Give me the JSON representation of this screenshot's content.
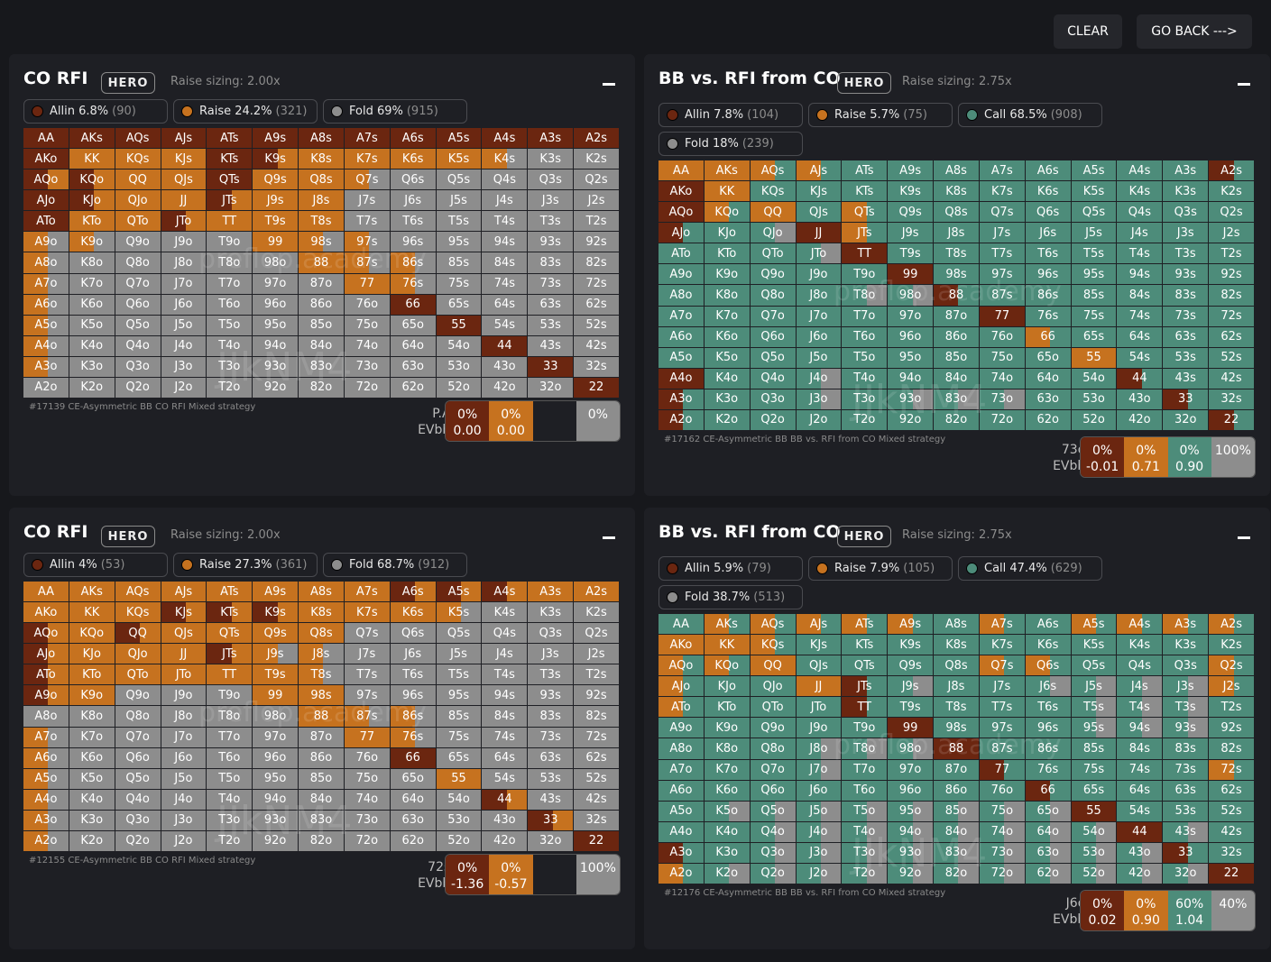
{
  "top": {
    "clear": "CLEAR",
    "back": "GO BACK --->"
  },
  "colors": {
    "allin": "#6b2610",
    "raise": "#c6721f",
    "call": "#4d8c7a",
    "fold": "#8d8d8d"
  },
  "panels": [
    {
      "title": "CO RFI",
      "hero": "HERO",
      "sizing": "Raise sizing: 2.00x",
      "chips": [
        {
          "color": "allin",
          "label": "Allin 6.8%",
          "count": "(90)"
        },
        {
          "color": "raise",
          "label": "Raise 24.2%",
          "count": "(321)"
        },
        {
          "color": "fold",
          "label": "Fold 69%",
          "count": "(915)"
        }
      ],
      "footer": "#17139 CE-Asymmetric BB CO RFI Mixed strategy",
      "hover": {
        "hand": "P.A:",
        "ev": "EVbb:",
        "cells": [
          {
            "color": "allin",
            "pct": "0%",
            "ev": "0.00"
          },
          {
            "color": "raise",
            "pct": "0%",
            "ev": "0.00"
          },
          {
            "color": "dark",
            "pct": "",
            "ev": ""
          },
          {
            "color": "fold",
            "pct": "0%",
            "ev": ""
          }
        ]
      },
      "rows": [
        [
          "A,A",
          "A,A",
          "A,A",
          "A,A",
          "A",
          "A",
          "A",
          "A",
          "A",
          "A",
          "A",
          "A",
          "A"
        ],
        [
          "A,A",
          "R",
          "R",
          "R",
          "A",
          "A,R",
          "R",
          "R",
          "R",
          "R",
          "R,F",
          "F",
          "F"
        ],
        [
          "A,R",
          "A,R",
          "R",
          "R",
          "A",
          "R",
          "R",
          "R,F",
          "F",
          "F",
          "F",
          "F",
          "F"
        ],
        [
          "A",
          "A,R",
          "R",
          "R",
          "A,R",
          "R",
          "R",
          "F",
          "F",
          "F",
          "F",
          "F",
          "F"
        ],
        [
          "A",
          "R",
          "R",
          "A,R",
          "R",
          "R",
          "R",
          "F",
          "F",
          "F",
          "F",
          "F",
          "F"
        ],
        [
          "R,F",
          "R,F",
          "F",
          "F",
          "F",
          "R",
          "R,F",
          "R,F",
          "F",
          "F",
          "F",
          "F",
          "F"
        ],
        [
          "R,F",
          "F",
          "F",
          "F",
          "F",
          "F",
          "R",
          "R,F",
          "R,F",
          "F",
          "F",
          "F",
          "F"
        ],
        [
          "R,F",
          "F",
          "F",
          "F",
          "F",
          "F",
          "F",
          "R",
          "R,F",
          "F",
          "F",
          "F",
          "F"
        ],
        [
          "R,F",
          "F",
          "F",
          "F",
          "F",
          "F",
          "F",
          "F",
          "A",
          "F",
          "F",
          "F",
          "F"
        ],
        [
          "R,F",
          "F",
          "F",
          "F",
          "F",
          "F",
          "F",
          "F",
          "F",
          "A",
          "F",
          "F",
          "F"
        ],
        [
          "R,F",
          "F",
          "F",
          "F",
          "F",
          "F",
          "F",
          "F",
          "F",
          "F",
          "A",
          "F",
          "F"
        ],
        [
          "R,F",
          "F",
          "F",
          "F",
          "F",
          "F",
          "F",
          "F",
          "F",
          "F",
          "F",
          "A",
          "F"
        ],
        [
          "F",
          "F",
          "F",
          "F",
          "F",
          "F",
          "F",
          "F",
          "F",
          "F",
          "F",
          "F",
          "A"
        ]
      ]
    },
    {
      "title": "BB vs. RFI from CO",
      "hero": "HERO",
      "sizing": "Raise sizing: 2.75x",
      "chips": [
        {
          "color": "allin",
          "label": "Allin 7.8%",
          "count": "(104)"
        },
        {
          "color": "raise",
          "label": "Raise 5.7%",
          "count": "(75)"
        },
        {
          "color": "call",
          "label": "Call 68.5%",
          "count": "(908)"
        },
        {
          "color": "fold",
          "label": "Fold 18%",
          "count": "(239)"
        }
      ],
      "footer": "#17162 CE-Asymmetric BB BB vs. RFI from CO Mixed strategy",
      "hover": {
        "hand": "73o:",
        "ev": "EVbb:",
        "cells": [
          {
            "color": "allin",
            "pct": "0%",
            "ev": "-0.01"
          },
          {
            "color": "raise",
            "pct": "0%",
            "ev": "0.71"
          },
          {
            "color": "call",
            "pct": "0%",
            "ev": "0.90"
          },
          {
            "color": "fold",
            "pct": "100%",
            "ev": ""
          }
        ]
      },
      "rows": [
        [
          "R",
          "R",
          "R,C",
          "R,C",
          "C",
          "C",
          "C",
          "C",
          "C",
          "C",
          "C",
          "C",
          "A,C"
        ],
        [
          "A",
          "R",
          "C",
          "C",
          "C",
          "C",
          "C",
          "C",
          "C",
          "C",
          "C",
          "C",
          "C"
        ],
        [
          "A",
          "R,C",
          "R",
          "C",
          "R,C",
          "C",
          "C",
          "C",
          "C",
          "C",
          "C",
          "C",
          "C"
        ],
        [
          "A,C",
          "C",
          "C,F",
          "A",
          "R,C",
          "C",
          "C",
          "C",
          "C",
          "C",
          "C",
          "C",
          "C"
        ],
        [
          "C",
          "C",
          "C",
          "C,F",
          "A",
          "C",
          "C",
          "C",
          "C",
          "C",
          "C",
          "C",
          "C"
        ],
        [
          "C",
          "C",
          "C",
          "C",
          "C",
          "A",
          "C",
          "C",
          "C",
          "C",
          "C",
          "C",
          "C"
        ],
        [
          "C",
          "C",
          "C",
          "C",
          "C,F",
          "C,F",
          "A,C",
          "C",
          "C",
          "C",
          "C",
          "C",
          "C"
        ],
        [
          "C",
          "C",
          "C",
          "C",
          "C",
          "C",
          "C",
          "A",
          "C",
          "C",
          "C",
          "C",
          "C"
        ],
        [
          "C",
          "C",
          "C",
          "C",
          "C",
          "C",
          "C",
          "C",
          "R,C",
          "C",
          "C",
          "C",
          "C"
        ],
        [
          "C",
          "C",
          "C",
          "C",
          "C",
          "C",
          "C",
          "C",
          "C",
          "R",
          "C",
          "C",
          "C"
        ],
        [
          "A",
          "C",
          "C",
          "C,F",
          "C",
          "C",
          "C",
          "C",
          "C",
          "C",
          "A,C",
          "C",
          "C"
        ],
        [
          "A,C",
          "C",
          "C",
          "C,F",
          "C",
          "C,F",
          "C,F",
          "C,F",
          "C",
          "C",
          "C",
          "A,C",
          "C"
        ],
        [
          "A,C",
          "C",
          "C",
          "C",
          "C",
          "C",
          "C",
          "C",
          "C",
          "C",
          "C",
          "C",
          "A,C"
        ]
      ]
    },
    {
      "title": "CO RFI",
      "hero": "HERO",
      "sizing": "Raise sizing: 2.00x",
      "chips": [
        {
          "color": "allin",
          "label": "Allin 4%",
          "count": "(53)"
        },
        {
          "color": "raise",
          "label": "Raise 27.3%",
          "count": "(361)"
        },
        {
          "color": "fold",
          "label": "Fold 68.7%",
          "count": "(912)"
        }
      ],
      "footer": "#12155 CE-Asymmetric BB CO RFI Mixed strategy",
      "hover": {
        "hand": "72s:",
        "ev": "EVbb:",
        "cells": [
          {
            "color": "allin",
            "pct": "0%",
            "ev": "-1.36"
          },
          {
            "color": "raise",
            "pct": "0%",
            "ev": "-0.57"
          },
          {
            "color": "dark",
            "pct": "",
            "ev": ""
          },
          {
            "color": "fold",
            "pct": "100%",
            "ev": ""
          }
        ]
      },
      "rows": [
        [
          "R",
          "R",
          "R",
          "R",
          "R",
          "R",
          "R",
          "R",
          "A,R",
          "A,R",
          "A,R",
          "R",
          "R"
        ],
        [
          "R",
          "R",
          "R",
          "A,R",
          "A,R",
          "A,R",
          "R",
          "R",
          "R",
          "R,F",
          "F",
          "F",
          "F"
        ],
        [
          "A,R",
          "R",
          "A,R",
          "R",
          "R",
          "R",
          "R",
          "F",
          "F",
          "F",
          "F",
          "F",
          "F"
        ],
        [
          "A,R",
          "R",
          "R",
          "R",
          "A,R",
          "R,F",
          "R,F",
          "F",
          "F",
          "F",
          "F",
          "F",
          "F"
        ],
        [
          "A,R",
          "R",
          "R",
          "R",
          "R",
          "R",
          "R,F",
          "F",
          "F",
          "F",
          "F",
          "F",
          "F"
        ],
        [
          "A,R",
          "R",
          "F",
          "F",
          "F",
          "R",
          "R",
          "F",
          "F",
          "F",
          "F",
          "F",
          "F"
        ],
        [
          "F",
          "F",
          "F",
          "F",
          "F",
          "F",
          "R",
          "R,F",
          "R,F",
          "F",
          "F",
          "F",
          "F"
        ],
        [
          "R,F",
          "F",
          "F",
          "F",
          "F",
          "F",
          "F",
          "R",
          "R,F",
          "F",
          "F",
          "F",
          "F"
        ],
        [
          "R,F",
          "F",
          "F",
          "F",
          "F",
          "F",
          "F",
          "F",
          "A",
          "F",
          "F",
          "F",
          "F"
        ],
        [
          "R,F",
          "F",
          "F",
          "F",
          "F",
          "F",
          "F",
          "F",
          "F",
          "R",
          "F",
          "F",
          "F"
        ],
        [
          "R,F",
          "F",
          "F",
          "F",
          "F",
          "F",
          "F",
          "F",
          "F",
          "F",
          "A,R",
          "F",
          "F"
        ],
        [
          "R,F",
          "F",
          "F",
          "F",
          "F",
          "F",
          "F",
          "F",
          "F",
          "F",
          "F",
          "A,R",
          "F"
        ],
        [
          "R,F",
          "F",
          "F",
          "F",
          "F",
          "F",
          "F",
          "F",
          "F",
          "F",
          "F",
          "F",
          "A"
        ]
      ]
    },
    {
      "title": "BB vs. RFI from CO",
      "hero": "HERO",
      "sizing": "Raise sizing: 2.75x",
      "chips": [
        {
          "color": "allin",
          "label": "Allin 5.9%",
          "count": "(79)"
        },
        {
          "color": "raise",
          "label": "Raise 7.9%",
          "count": "(105)"
        },
        {
          "color": "call",
          "label": "Call 47.4%",
          "count": "(629)"
        },
        {
          "color": "fold",
          "label": "Fold 38.7%",
          "count": "(513)"
        }
      ],
      "footer": "#12176 CE-Asymmetric BB BB vs. RFI from CO Mixed strategy",
      "hover": {
        "hand": "J6o:",
        "ev": "EVbb:",
        "cells": [
          {
            "color": "allin",
            "pct": "0%",
            "ev": "0.02"
          },
          {
            "color": "raise",
            "pct": "0%",
            "ev": "0.90"
          },
          {
            "color": "call",
            "pct": "60%",
            "ev": "1.04"
          },
          {
            "color": "fold",
            "pct": "40%",
            "ev": ""
          }
        ]
      },
      "rows": [
        [
          "C",
          "R,C",
          "R,C",
          "R,C",
          "R,C",
          "R,C",
          "C",
          "R,C",
          "C",
          "R,C",
          "R,C",
          "R,C",
          "R,C"
        ],
        [
          "R",
          "R",
          "R,C",
          "C",
          "C",
          "C",
          "C",
          "C",
          "C",
          "C",
          "C",
          "C",
          "C"
        ],
        [
          "R,C",
          "R,C",
          "R",
          "C",
          "C",
          "C",
          "C",
          "R,C",
          "R,C",
          "C",
          "C",
          "C",
          "R,C"
        ],
        [
          "R,C",
          "C",
          "C",
          "R",
          "A,C",
          "C,F",
          "C",
          "C",
          "C,F",
          "C,F",
          "C,F",
          "C,F",
          "R,C"
        ],
        [
          "R,C",
          "C",
          "C",
          "C",
          "A,C",
          "C",
          "C",
          "C",
          "C",
          "C,F",
          "C,F",
          "C,F",
          "C"
        ],
        [
          "C",
          "C",
          "C",
          "C",
          "C",
          "A",
          "C",
          "C",
          "C",
          "C,F",
          "C,F",
          "C,F",
          "C"
        ],
        [
          "C",
          "C",
          "C",
          "C,F",
          "C,F",
          "C,F",
          "A",
          "C",
          "C",
          "C",
          "C",
          "C",
          "C"
        ],
        [
          "C",
          "C",
          "C",
          "C,F",
          "C",
          "C",
          "C",
          "A,C",
          "C",
          "C",
          "C",
          "C",
          "R,C"
        ],
        [
          "C",
          "C",
          "C",
          "C",
          "C",
          "C",
          "C",
          "C",
          "A,C",
          "C",
          "C",
          "C",
          "C"
        ],
        [
          "C",
          "C,F",
          "C,F",
          "C,F",
          "C,F",
          "C,F",
          "C,F",
          "C,F",
          "C,F",
          "A",
          "C",
          "C",
          "C"
        ],
        [
          "C",
          "C",
          "C,F",
          "C,F",
          "C,F",
          "C,F",
          "C,F",
          "C,F",
          "C,F",
          "C,F",
          "A",
          "C,F",
          "C"
        ],
        [
          "A,C",
          "C",
          "C,F",
          "C,F",
          "C,F",
          "C,F",
          "C,F",
          "C,F",
          "C,F",
          "C,F",
          "C,F",
          "A,C",
          "C"
        ],
        [
          "R,C",
          "C,F",
          "C,F",
          "C,F",
          "C,F",
          "C,F",
          "C,F",
          "C,F",
          "C,F",
          "C,F",
          "C,F",
          "C,F",
          "A"
        ]
      ]
    }
  ]
}
